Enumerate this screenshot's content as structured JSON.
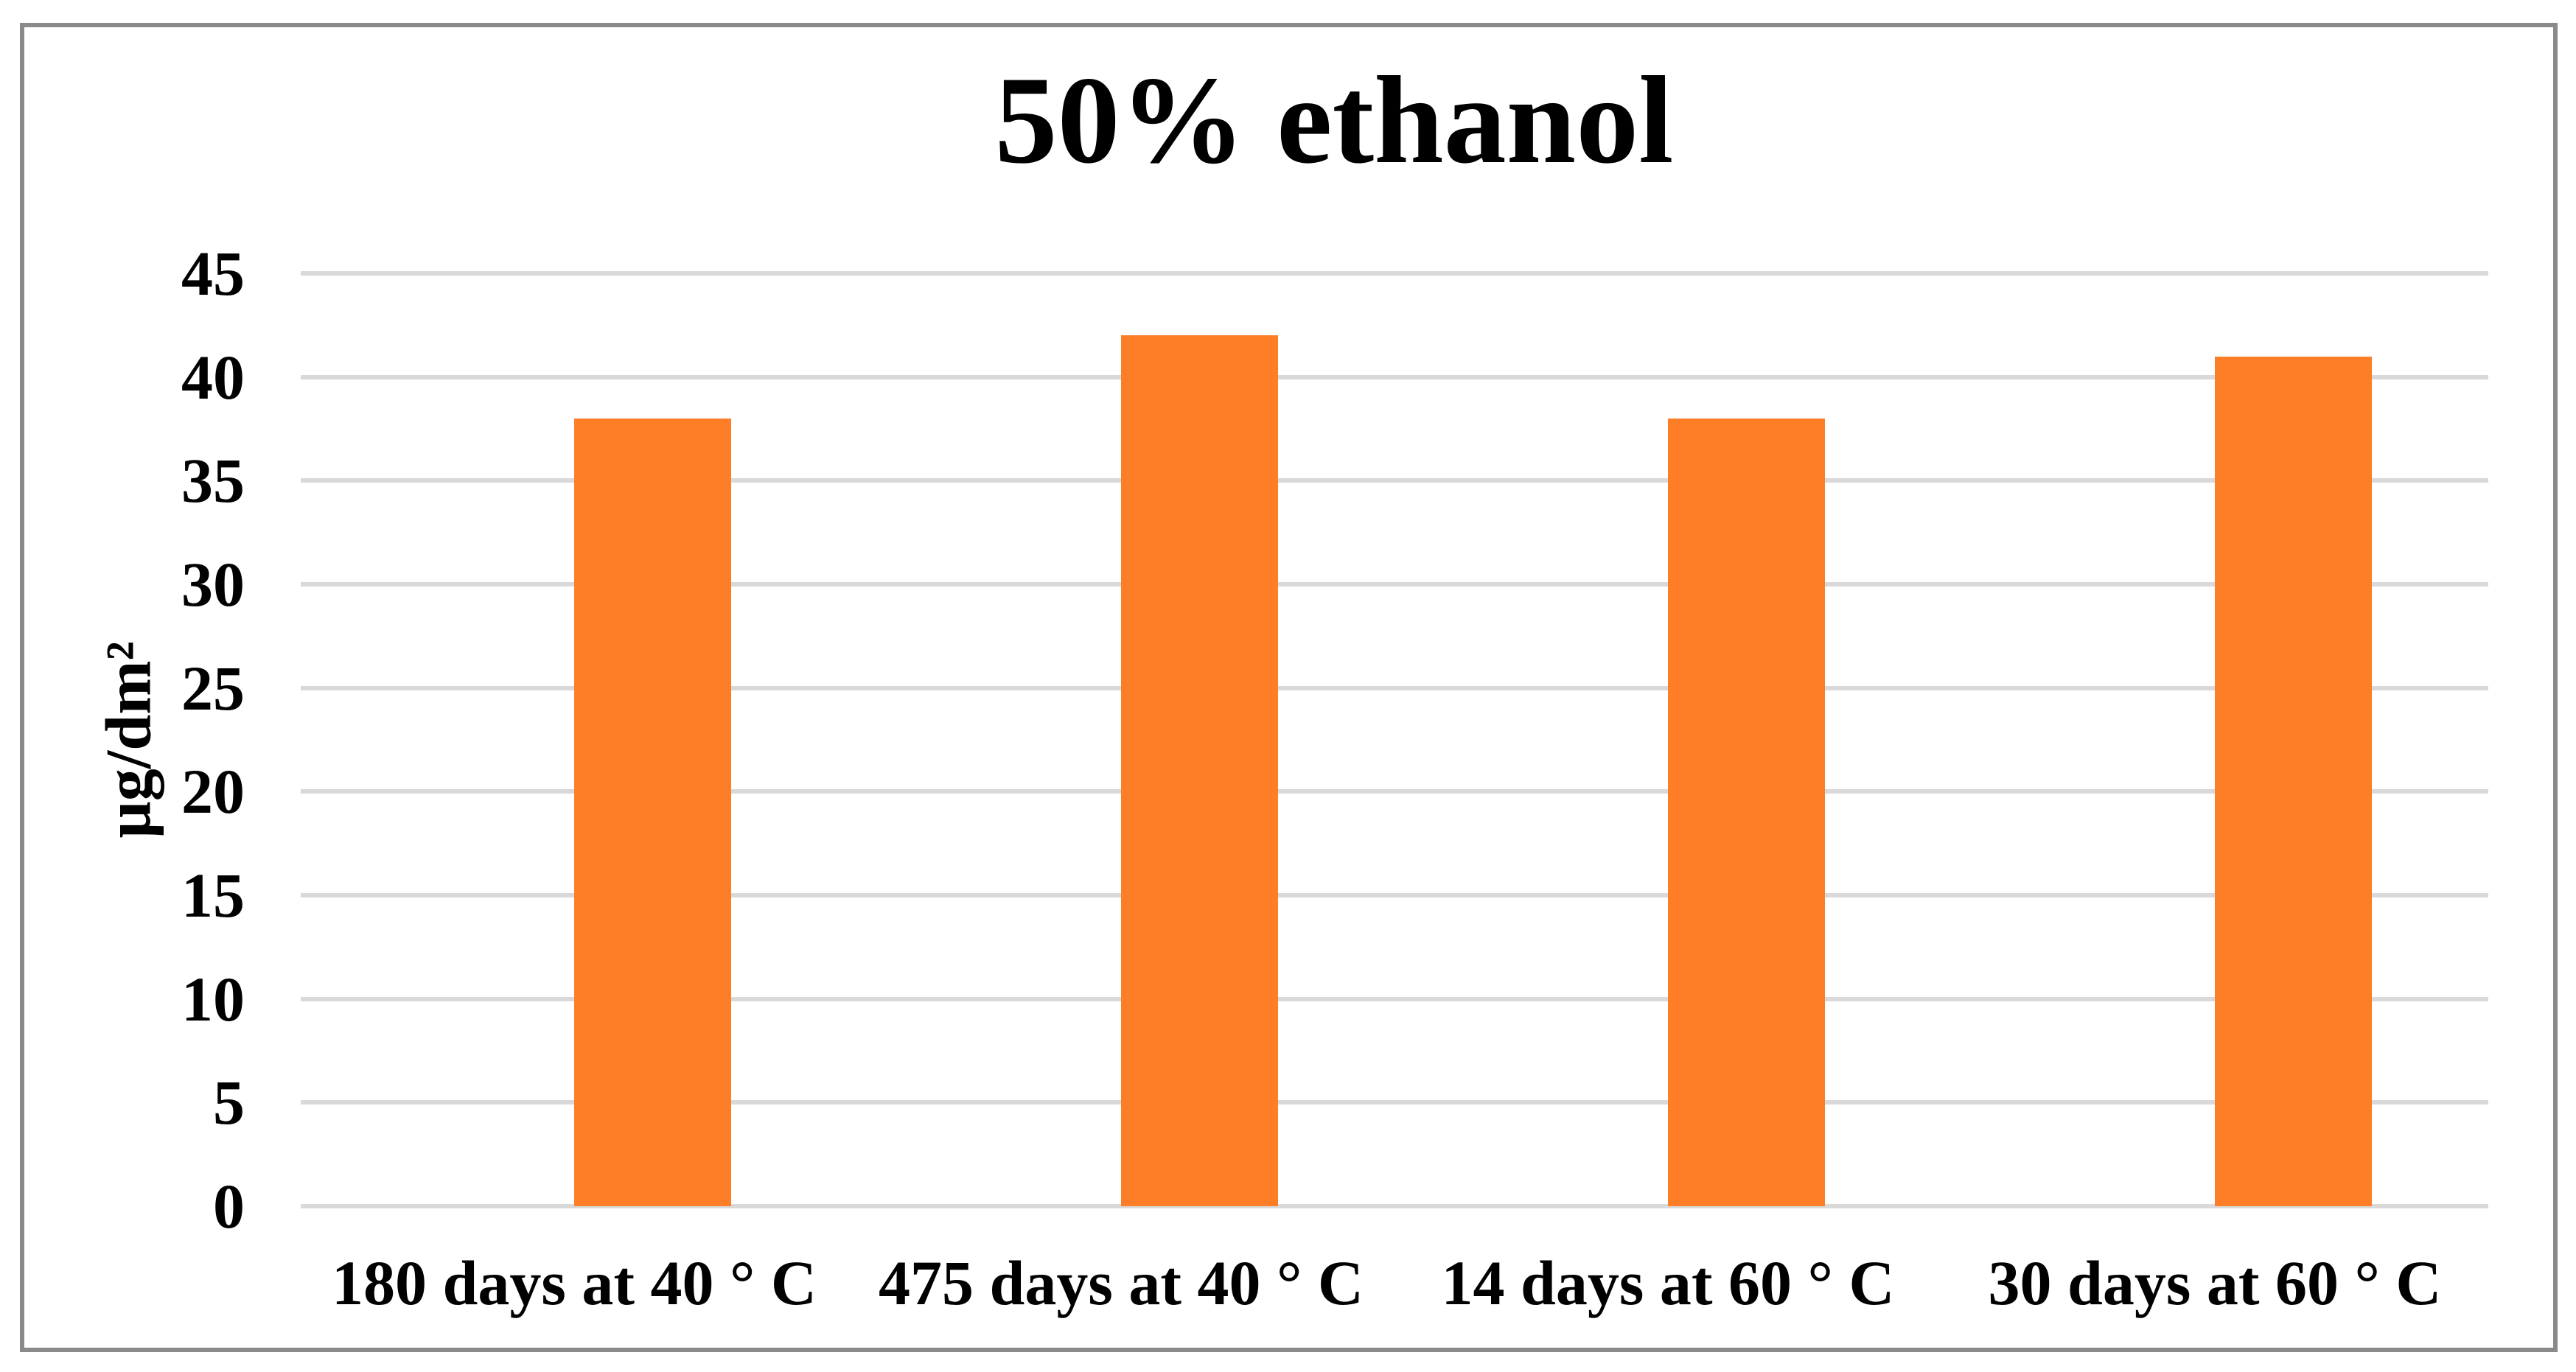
{
  "chart_data": {
    "type": "bar",
    "title": "50% ethanol",
    "ylabel": "µg/dm²",
    "xlabel": "",
    "categories": [
      "180 days at 40 ° C",
      "475 days at 40 ° C",
      "14 days at 60 ° C",
      "30 days at 60 ° C"
    ],
    "values": [
      38,
      42,
      38,
      41
    ],
    "ylim": [
      0,
      45
    ],
    "yticks": [
      0,
      5,
      10,
      15,
      20,
      25,
      30,
      35,
      40,
      45
    ],
    "grid": "horizontal gridlines on",
    "legend_position": "none",
    "colors": {
      "bar": "#FD7E27",
      "gridline": "#D9D9D9",
      "frame_border": "#8A8A8A",
      "text": "#000000",
      "background": "#FFFFFF"
    }
  }
}
